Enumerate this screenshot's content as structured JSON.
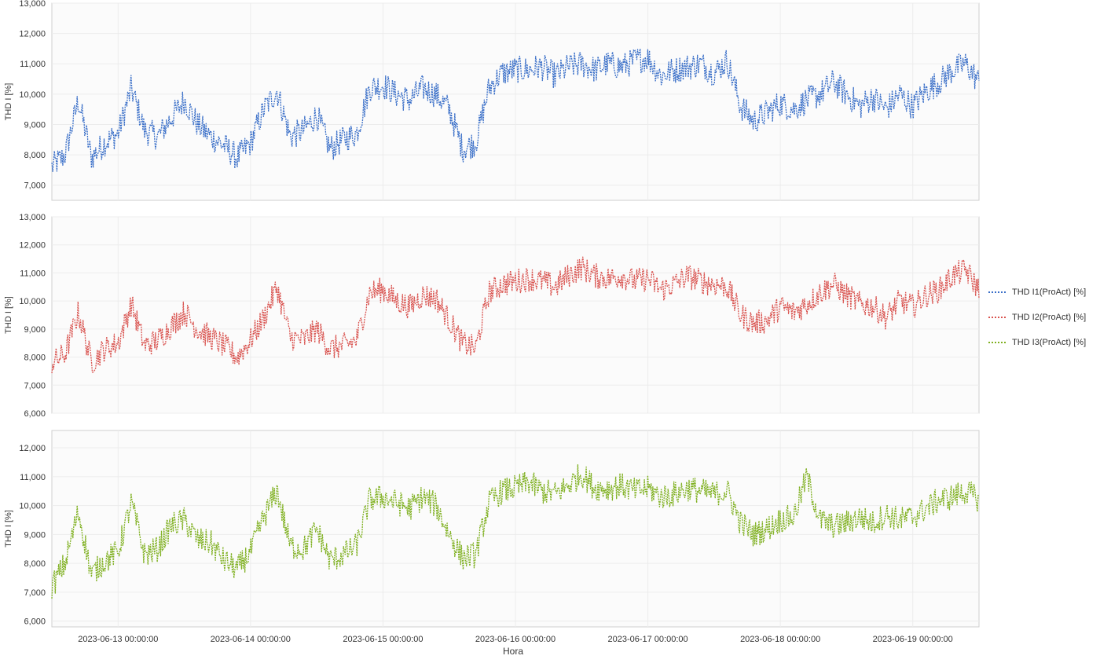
{
  "chart_data": {
    "type": "line",
    "x_axis": {
      "title": "Hora",
      "tick_labels": [
        "2023-06-13 00:00:00",
        "2023-06-14 00:00:00",
        "2023-06-15 00:00:00",
        "2023-06-16 00:00:00",
        "2023-06-17 00:00:00",
        "2023-06-18 00:00:00",
        "2023-06-19 00:00:00"
      ],
      "range_days": [
        -0.5,
        6.5
      ]
    },
    "panels": [
      {
        "ylabel": "THD I [%]",
        "ylim": [
          6.5,
          13.0
        ],
        "yticks": [
          7,
          8,
          9,
          10,
          11,
          12,
          13
        ],
        "ytick_labels": [
          "7,000",
          "8,000",
          "9,000",
          "10,000",
          "11,000",
          "12,000",
          "13,000"
        ],
        "series": {
          "name": "THD I1(ProAct) [%]",
          "color": "#3a6fc8",
          "x": [
            -0.5,
            -0.4,
            -0.3,
            -0.2,
            -0.1,
            0,
            0.1,
            0.2,
            0.3,
            0.4,
            0.5,
            0.6,
            0.7,
            0.8,
            0.9,
            1,
            1.1,
            1.2,
            1.3,
            1.4,
            1.5,
            1.6,
            1.7,
            1.8,
            1.9,
            2,
            2.1,
            2.2,
            2.3,
            2.4,
            2.5,
            2.6,
            2.7,
            2.8,
            2.9,
            3,
            3.1,
            3.2,
            3.3,
            3.4,
            3.5,
            3.6,
            3.7,
            3.8,
            3.9,
            4,
            4.1,
            4.2,
            4.3,
            4.4,
            4.5,
            4.6,
            4.7,
            4.8,
            4.9,
            5,
            5.1,
            5.2,
            5.3,
            5.4,
            5.5,
            5.6,
            5.7,
            5.8,
            5.9,
            6,
            6.1,
            6.2,
            6.3,
            6.4,
            6.5
          ],
          "values": [
            7.6,
            8.0,
            9.8,
            7.9,
            8.4,
            8.7,
            10.2,
            8.8,
            8.6,
            9.2,
            9.8,
            9.0,
            8.6,
            8.3,
            7.9,
            8.4,
            9.5,
            10.1,
            8.6,
            8.8,
            9.3,
            8.2,
            8.5,
            8.7,
            10.2,
            10.3,
            10.0,
            9.8,
            10.2,
            10.0,
            9.5,
            8.2,
            8.4,
            10.2,
            10.7,
            10.8,
            10.8,
            10.9,
            10.6,
            10.9,
            11.0,
            10.8,
            11.0,
            10.9,
            11.1,
            11.2,
            10.6,
            10.8,
            10.9,
            11.0,
            10.7,
            11.1,
            9.6,
            9.1,
            9.4,
            9.7,
            9.5,
            9.8,
            10.0,
            10.4,
            10.0,
            9.6,
            9.9,
            9.5,
            10.0,
            9.6,
            10.1,
            10.4,
            10.8,
            11.0,
            10.4
          ]
        }
      },
      {
        "ylabel": "THD I [%]",
        "ylim": [
          6.0,
          13.0
        ],
        "yticks": [
          6,
          7,
          8,
          9,
          10,
          11,
          12,
          13
        ],
        "ytick_labels": [
          "6,000",
          "7,000",
          "8,000",
          "9,000",
          "10,000",
          "11,000",
          "12,000",
          "13,000"
        ],
        "series": {
          "name": "THD I2(ProAct) [%]",
          "color": "#d9534f",
          "x": [
            -0.5,
            -0.4,
            -0.3,
            -0.2,
            -0.1,
            0,
            0.1,
            0.2,
            0.3,
            0.4,
            0.5,
            0.6,
            0.7,
            0.8,
            0.9,
            1,
            1.1,
            1.2,
            1.3,
            1.4,
            1.5,
            1.6,
            1.7,
            1.8,
            1.9,
            2,
            2.1,
            2.2,
            2.3,
            2.4,
            2.5,
            2.6,
            2.7,
            2.8,
            2.9,
            3,
            3.1,
            3.2,
            3.3,
            3.4,
            3.5,
            3.6,
            3.7,
            3.8,
            3.9,
            4,
            4.1,
            4.2,
            4.3,
            4.4,
            4.5,
            4.6,
            4.7,
            4.8,
            4.9,
            5,
            5.1,
            5.2,
            5.3,
            5.4,
            5.5,
            5.6,
            5.7,
            5.8,
            5.9,
            6,
            6.1,
            6.2,
            6.3,
            6.4,
            6.5
          ],
          "values": [
            7.8,
            8.1,
            9.6,
            7.8,
            8.3,
            8.5,
            9.9,
            8.4,
            8.6,
            9.1,
            9.6,
            9.0,
            8.7,
            8.4,
            8.0,
            8.6,
            9.4,
            10.5,
            8.7,
            8.6,
            9.0,
            8.3,
            8.4,
            8.6,
            10.3,
            10.4,
            10.0,
            9.8,
            10.2,
            10.1,
            9.3,
            8.5,
            8.3,
            10.3,
            10.6,
            10.7,
            10.8,
            10.7,
            10.5,
            10.9,
            11.2,
            10.9,
            10.8,
            10.9,
            10.7,
            10.8,
            10.4,
            10.6,
            10.9,
            10.7,
            10.6,
            10.5,
            9.5,
            9.2,
            9.3,
            9.8,
            9.6,
            9.9,
            10.3,
            10.6,
            10.2,
            9.9,
            9.8,
            9.4,
            10.0,
            9.8,
            10.2,
            10.4,
            10.9,
            11.1,
            10.4
          ]
        }
      },
      {
        "ylabel": "THD I [%]",
        "ylim": [
          5.8,
          12.6
        ],
        "yticks": [
          6,
          7,
          8,
          9,
          10,
          11,
          12
        ],
        "ytick_labels": [
          "6,000",
          "7,000",
          "8,000",
          "9,000",
          "10,000",
          "11,000",
          "12,000"
        ],
        "series": {
          "name": "THD I3(ProAct) [%]",
          "color": "#7fb020",
          "x": [
            -0.5,
            -0.4,
            -0.3,
            -0.2,
            -0.1,
            0,
            0.1,
            0.2,
            0.3,
            0.4,
            0.5,
            0.6,
            0.7,
            0.8,
            0.9,
            1,
            1.1,
            1.2,
            1.3,
            1.4,
            1.5,
            1.6,
            1.7,
            1.8,
            1.9,
            2,
            2.1,
            2.2,
            2.3,
            2.4,
            2.5,
            2.6,
            2.7,
            2.8,
            2.9,
            3,
            3.1,
            3.2,
            3.3,
            3.4,
            3.5,
            3.6,
            3.7,
            3.8,
            3.9,
            4,
            4.1,
            4.2,
            4.3,
            4.4,
            4.5,
            4.6,
            4.7,
            4.8,
            4.9,
            5,
            5.1,
            5.2,
            5.3,
            5.4,
            5.5,
            5.6,
            5.7,
            5.8,
            5.9,
            6,
            6.1,
            6.2,
            6.3,
            6.4,
            6.5
          ],
          "values": [
            7.2,
            8.0,
            9.8,
            7.6,
            8.1,
            8.4,
            10.1,
            8.3,
            8.5,
            9.3,
            9.5,
            8.8,
            8.7,
            8.1,
            7.8,
            8.4,
            9.6,
            10.5,
            8.6,
            8.5,
            9.2,
            8.1,
            8.3,
            8.6,
            10.2,
            10.3,
            10.1,
            9.9,
            10.3,
            10.0,
            9.0,
            8.2,
            8.3,
            10.1,
            10.5,
            10.6,
            10.8,
            10.5,
            10.4,
            10.7,
            11.1,
            10.6,
            10.6,
            10.7,
            10.5,
            10.6,
            10.3,
            10.4,
            10.6,
            10.5,
            10.4,
            10.5,
            9.4,
            9.0,
            9.2,
            9.5,
            9.6,
            11.0,
            9.5,
            9.3,
            9.4,
            9.6,
            9.4,
            9.7,
            9.5,
            9.6,
            9.9,
            10.2,
            10.3,
            10.5,
            10.2
          ]
        }
      }
    ]
  }
}
